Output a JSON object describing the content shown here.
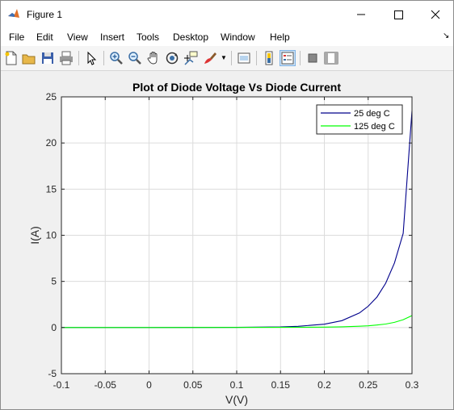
{
  "window": {
    "title": "Figure 1",
    "icon": "matlab-icon"
  },
  "menu": {
    "items": [
      "File",
      "Edit",
      "View",
      "Insert",
      "Tools",
      "Desktop",
      "Window",
      "Help"
    ],
    "dock_arrow": "↘"
  },
  "toolbar": {
    "icons": [
      "new-figure-icon",
      "open-file-icon",
      "save-icon",
      "print-icon",
      "edit-plot-arrow-icon",
      "zoom-in-icon",
      "zoom-out-icon",
      "pan-hand-icon",
      "rotate-3d-icon",
      "data-cursor-icon",
      "brush-icon",
      "link-plot-icon",
      "insert-colorbar-icon",
      "insert-legend-icon",
      "hide-plot-tools-icon",
      "show-plot-tools-icon"
    ]
  },
  "colors": {
    "series_25": "#00008b",
    "series_125": "#00ff00",
    "axes_bg": "#ffffff",
    "figure_bg": "#f0f0f0",
    "grid": "#dcdcdc"
  },
  "chart_data": {
    "type": "line",
    "title": "Plot of Diode Voltage Vs Diode Current",
    "xlabel": "V(V)",
    "ylabel": "I(A)",
    "xlim": [
      -0.1,
      0.3
    ],
    "ylim": [
      -5,
      25
    ],
    "xticks": [
      -0.1,
      -0.05,
      0,
      0.05,
      0.1,
      0.15,
      0.2,
      0.25,
      0.3
    ],
    "xtick_labels": [
      "-0.1",
      "-0.05",
      "0",
      "0.05",
      "0.1",
      "0.15",
      "0.2",
      "0.25",
      "0.3"
    ],
    "yticks": [
      -5,
      0,
      5,
      10,
      15,
      20,
      25
    ],
    "ytick_labels": [
      "-5",
      "0",
      "5",
      "10",
      "15",
      "20",
      "25"
    ],
    "grid": true,
    "legend_position": "top-right",
    "series": [
      {
        "name": "25 deg C",
        "color": "#00008b",
        "x": [
          -0.1,
          0.0,
          0.1,
          0.15,
          0.17,
          0.2,
          0.22,
          0.24,
          0.25,
          0.26,
          0.27,
          0.28,
          0.29,
          0.3
        ],
        "y": [
          0,
          0,
          0.02,
          0.06,
          0.13,
          0.36,
          0.75,
          1.58,
          2.3,
          3.3,
          4.8,
          7.0,
          10.2,
          23.5
        ]
      },
      {
        "name": "125 deg C",
        "color": "#00ff00",
        "x": [
          -0.1,
          0.0,
          0.1,
          0.15,
          0.2,
          0.22,
          0.24,
          0.25,
          0.26,
          0.27,
          0.28,
          0.29,
          0.3
        ],
        "y": [
          0,
          0,
          0.01,
          0.02,
          0.05,
          0.08,
          0.14,
          0.19,
          0.27,
          0.38,
          0.56,
          0.85,
          1.3
        ]
      }
    ]
  }
}
